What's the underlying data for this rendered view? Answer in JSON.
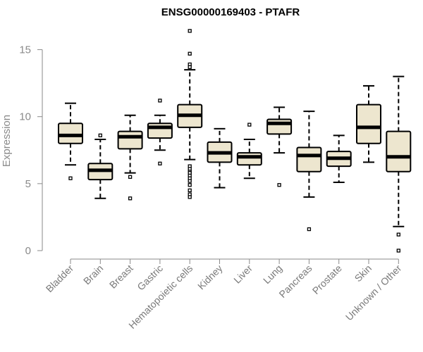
{
  "chart_data": {
    "type": "boxplot",
    "title": "ENSG00000169403 - PTAFR",
    "xlabel": "",
    "ylabel": "Expression",
    "ylim": [
      0,
      16.5
    ],
    "yticks": [
      0,
      5,
      10,
      15
    ],
    "grid": false,
    "box_fill": "#ede6cf",
    "box_stroke": "#000000",
    "median_color": "#000000",
    "categories": [
      "Bladder",
      "Brain",
      "Breast",
      "Gastric",
      "Hematopoietic cells",
      "Kidney",
      "Liver",
      "Lung",
      "Pancreas",
      "Prostate",
      "Skin",
      "Unknown / Other"
    ],
    "boxes": [
      {
        "whisker_low": 6.4,
        "q1": 8.0,
        "median": 8.6,
        "q3": 9.5,
        "whisker_high": 11.0,
        "outliers": [
          5.4
        ]
      },
      {
        "whisker_low": 3.9,
        "q1": 5.3,
        "median": 6.0,
        "q3": 6.5,
        "whisker_high": 8.3,
        "outliers": [
          8.6
        ]
      },
      {
        "whisker_low": 5.8,
        "q1": 7.6,
        "median": 8.5,
        "q3": 8.9,
        "whisker_high": 10.1,
        "outliers": [
          5.5,
          3.9
        ]
      },
      {
        "whisker_low": 7.5,
        "q1": 8.4,
        "median": 9.2,
        "q3": 9.5,
        "whisker_high": 10.1,
        "outliers": [
          11.2,
          6.5
        ]
      },
      {
        "whisker_low": 6.8,
        "q1": 9.2,
        "median": 10.1,
        "q3": 10.9,
        "whisker_high": 13.5,
        "outliers": [
          16.4,
          14.7,
          13.9,
          13.7,
          6.3,
          6.1,
          5.9,
          5.8,
          5.6,
          5.4,
          5.2,
          4.9,
          4.5,
          4.2,
          4.0
        ]
      },
      {
        "whisker_low": 4.7,
        "q1": 6.6,
        "median": 7.3,
        "q3": 8.1,
        "whisker_high": 9.1,
        "outliers": []
      },
      {
        "whisker_low": 5.4,
        "q1": 6.4,
        "median": 7.0,
        "q3": 7.3,
        "whisker_high": 8.3,
        "outliers": [
          9.4
        ]
      },
      {
        "whisker_low": 7.3,
        "q1": 8.7,
        "median": 9.5,
        "q3": 9.8,
        "whisker_high": 10.7,
        "outliers": [
          4.9
        ]
      },
      {
        "whisker_low": 4.0,
        "q1": 5.9,
        "median": 7.1,
        "q3": 7.7,
        "whisker_high": 10.4,
        "outliers": [
          1.6
        ]
      },
      {
        "whisker_low": 5.1,
        "q1": 6.3,
        "median": 6.9,
        "q3": 7.4,
        "whisker_high": 8.6,
        "outliers": []
      },
      {
        "whisker_low": 6.6,
        "q1": 8.0,
        "median": 9.2,
        "q3": 10.9,
        "whisker_high": 12.3,
        "outliers": []
      },
      {
        "whisker_low": 1.8,
        "q1": 5.9,
        "median": 7.0,
        "q3": 8.9,
        "whisker_high": 13.0,
        "outliers": [
          1.2,
          0.0
        ]
      }
    ]
  }
}
